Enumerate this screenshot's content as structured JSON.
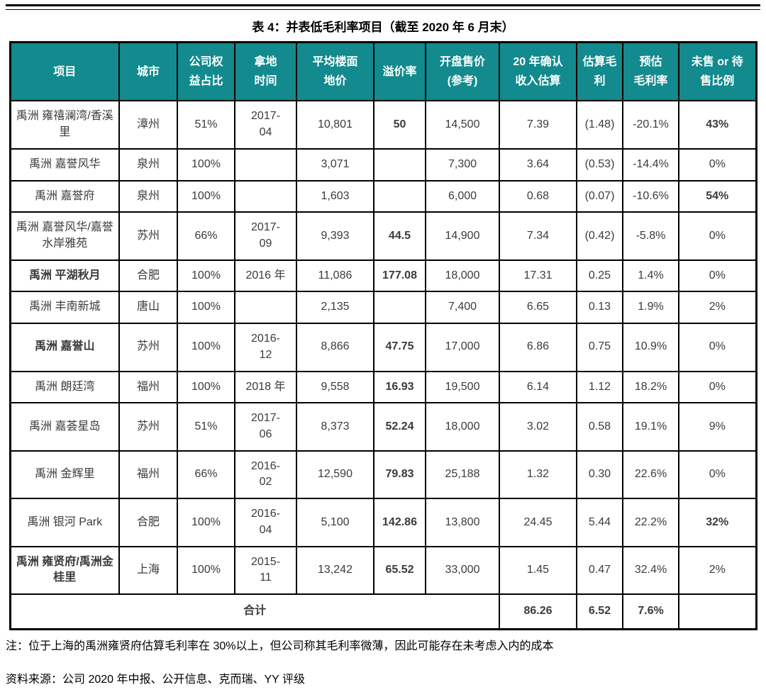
{
  "page": {
    "title": "表 4：并表低毛利率项目（截至 2020 年 6 月末）",
    "note": "注：位于上海的禹洲雍贤府估算毛利率在 30%以上，但公司称其毛利率微薄，因此可能存在未考虑入内的成本",
    "source": "资料来源：公司 2020 年中报、公开信息、克而瑞、YY 评级"
  },
  "colors": {
    "header_bg": "#128A8E",
    "header_text": "#FFFFFF",
    "premium_bg": "#FBEDD3",
    "estimate_bg": "#D6DCE4",
    "highlight_red": "#FF0000",
    "highlight_orange": "#ED7D31",
    "body_text": "#3B3B3B",
    "border_color": "#000000"
  },
  "table": {
    "columns": [
      "项目",
      "城市",
      "公司权\n益占比",
      "拿地\n时间",
      "平均楼面\n地价",
      "溢价率",
      "开盘售价\n(参考)",
      "20 年确认\n收入估算",
      "估算毛\n利",
      "预估\n毛利率",
      "未售 or 待\n售比例"
    ],
    "rows": [
      {
        "project": "禹洲 雍禧澜湾/香溪里",
        "orange": false,
        "city": "漳州",
        "equity": "51%",
        "land": "2017-\n04",
        "floor_price": "10,801",
        "premium": "50",
        "open_price": "14,500",
        "revenue": "7.39",
        "gross_profit": "(1.48)",
        "gross_margin": "-20.1%",
        "unsold": "43%",
        "unsold_red": true
      },
      {
        "project": "禹洲 嘉誉风华",
        "orange": false,
        "city": "泉州",
        "equity": "100%",
        "land": "",
        "floor_price": "3,071",
        "premium": "",
        "open_price": "7,300",
        "revenue": "3.64",
        "gross_profit": "(0.53)",
        "gross_margin": "-14.4%",
        "unsold": "0%",
        "unsold_red": false
      },
      {
        "project": "禹洲 嘉誉府",
        "orange": false,
        "city": "泉州",
        "equity": "100%",
        "land": "",
        "floor_price": "1,603",
        "premium": "",
        "open_price": "6,000",
        "revenue": "0.68",
        "gross_profit": "(0.07)",
        "gross_margin": "-10.6%",
        "unsold": "54%",
        "unsold_red": true
      },
      {
        "project": "禹洲 嘉誉风华/嘉誉水岸雅苑",
        "orange": false,
        "city": "苏州",
        "equity": "66%",
        "land": "2017-\n09",
        "floor_price": "9,393",
        "premium": "44.5",
        "open_price": "14,900",
        "revenue": "7.34",
        "gross_profit": "(0.42)",
        "gross_margin": "-5.8%",
        "unsold": "0%",
        "unsold_red": false
      },
      {
        "project": "禹洲 平湖秋月",
        "orange": true,
        "city": "合肥",
        "equity": "100%",
        "land": "2016 年",
        "floor_price": "11,086",
        "premium": "177.08",
        "open_price": "18,000",
        "revenue": "17.31",
        "gross_profit": "0.25",
        "gross_margin": "1.4%",
        "unsold": "0%",
        "unsold_red": false
      },
      {
        "project": "禹洲 丰南新城",
        "orange": false,
        "city": "唐山",
        "equity": "100%",
        "land": "",
        "floor_price": "2,135",
        "premium": "",
        "open_price": "7,400",
        "revenue": "6.65",
        "gross_profit": "0.13",
        "gross_margin": "1.9%",
        "unsold": "2%",
        "unsold_red": false
      },
      {
        "project": "禹洲 嘉誉山",
        "orange": true,
        "city": "苏州",
        "equity": "100%",
        "land": "2016-\n12",
        "floor_price": "8,866",
        "premium": "47.75",
        "open_price": "17,000",
        "revenue": "6.86",
        "gross_profit": "0.75",
        "gross_margin": "10.9%",
        "unsold": "0%",
        "unsold_red": false
      },
      {
        "project": "禹洲 朗廷湾",
        "orange": false,
        "city": "福州",
        "equity": "100%",
        "land": "2018 年",
        "floor_price": "9,558",
        "premium": "16.93",
        "open_price": "19,500",
        "revenue": "6.14",
        "gross_profit": "1.12",
        "gross_margin": "18.2%",
        "unsold": "0%",
        "unsold_red": false
      },
      {
        "project": "禹洲 嘉荟星岛",
        "orange": false,
        "city": "苏州",
        "equity": "51%",
        "land": "2017-\n06",
        "floor_price": "8,373",
        "premium": "52.24",
        "open_price": "18,000",
        "revenue": "3.02",
        "gross_profit": "0.58",
        "gross_margin": "19.1%",
        "unsold": "9%",
        "unsold_red": false
      },
      {
        "project": "禹洲 金辉里",
        "orange": false,
        "city": "福州",
        "equity": "66%",
        "land": "2016-\n02",
        "floor_price": "12,590",
        "premium": "79.83",
        "open_price": "25,188",
        "revenue": "1.32",
        "gross_profit": "0.30",
        "gross_margin": "22.6%",
        "unsold": "0%",
        "unsold_red": false
      },
      {
        "project": "禹洲 银河 Park",
        "orange": false,
        "city": "合肥",
        "equity": "100%",
        "land": "2016-\n04",
        "floor_price": "5,100",
        "premium": "142.86",
        "open_price": "13,800",
        "revenue": "24.45",
        "gross_profit": "5.44",
        "gross_margin": "22.2%",
        "unsold": "32%",
        "unsold_red": true
      },
      {
        "project": "禹洲 雍贤府/禹洲金桂里",
        "orange": true,
        "city": "上海",
        "equity": "100%",
        "land": "2015-\n11",
        "floor_price": "13,242",
        "premium": "65.52",
        "open_price": "33,000",
        "revenue": "1.45",
        "gross_profit": "0.47",
        "gross_margin": "32.4%",
        "unsold": "2%",
        "unsold_red": false
      }
    ],
    "total": {
      "label": "合计",
      "revenue": "86.26",
      "gross_profit": "6.52",
      "gross_margin": "7.6%",
      "unsold": ""
    }
  }
}
